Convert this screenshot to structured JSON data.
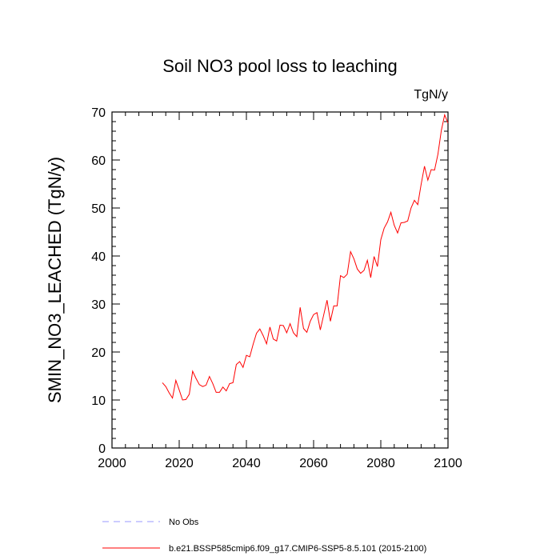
{
  "chart_data": {
    "type": "line",
    "title": "Soil NO3 pool loss to leaching",
    "units_label": "TgN/y",
    "xlabel": "",
    "ylabel": "SMIN_NO3_LEACHED  (TgN/y)",
    "xlim": [
      2000,
      2100
    ],
    "ylim": [
      0,
      70
    ],
    "x_ticks": [
      2000,
      2020,
      2040,
      2060,
      2080,
      2100
    ],
    "y_ticks": [
      0,
      10,
      20,
      30,
      40,
      50,
      60,
      70
    ],
    "grid": false,
    "legend_position": "bottom",
    "series": [
      {
        "name": "b.e21.BSSP585cmip6.f09_g17.CMIP6-SSP5-8.5.101 (2015-2100)",
        "color": "#ff0000",
        "line_style": "solid",
        "x": [
          2015,
          2016,
          2017,
          2018,
          2019,
          2020,
          2021,
          2022,
          2023,
          2024,
          2025,
          2026,
          2027,
          2028,
          2029,
          2030,
          2031,
          2032,
          2033,
          2034,
          2035,
          2036,
          2037,
          2038,
          2039,
          2040,
          2041,
          2042,
          2043,
          2044,
          2045,
          2046,
          2047,
          2048,
          2049,
          2050,
          2051,
          2052,
          2053,
          2054,
          2055,
          2056,
          2057,
          2058,
          2059,
          2060,
          2061,
          2062,
          2063,
          2064,
          2065,
          2066,
          2067,
          2068,
          2069,
          2070,
          2071,
          2072,
          2073,
          2074,
          2075,
          2076,
          2077,
          2078,
          2079,
          2080,
          2081,
          2082,
          2083,
          2084,
          2085,
          2086,
          2087,
          2088,
          2089,
          2090,
          2091,
          2092,
          2093,
          2094,
          2095,
          2096,
          2097,
          2098,
          2099,
          2100
        ],
        "values": [
          13.6,
          12.8,
          11.5,
          10.4,
          14.1,
          12.1,
          10.0,
          10.1,
          11.2,
          16.0,
          14.5,
          13.2,
          12.8,
          13.1,
          14.9,
          13.4,
          11.6,
          11.6,
          12.7,
          11.9,
          13.4,
          13.6,
          17.4,
          18.0,
          16.8,
          19.3,
          19.0,
          21.6,
          23.9,
          24.8,
          23.4,
          21.7,
          25.2,
          22.7,
          22.3,
          25.6,
          25.5,
          24.0,
          25.9,
          24.0,
          23.2,
          29.3,
          24.9,
          24.1,
          26.4,
          27.8,
          28.2,
          24.6,
          27.7,
          30.8,
          26.4,
          29.6,
          29.6,
          35.9,
          35.5,
          36.2,
          40.9,
          39.4,
          37.3,
          36.4,
          37.0,
          39.1,
          35.5,
          39.9,
          37.8,
          43.4,
          45.8,
          47.1,
          49.1,
          46.4,
          44.8,
          46.9,
          47.0,
          47.3,
          50.0,
          51.6,
          50.7,
          54.9,
          58.7,
          55.8,
          58.0,
          57.9,
          61.2,
          66.1,
          69.4,
          67.7
        ]
      },
      {
        "name": "No Obs",
        "color": "#9999ff",
        "line_style": "dashed",
        "x": [],
        "values": []
      }
    ]
  }
}
